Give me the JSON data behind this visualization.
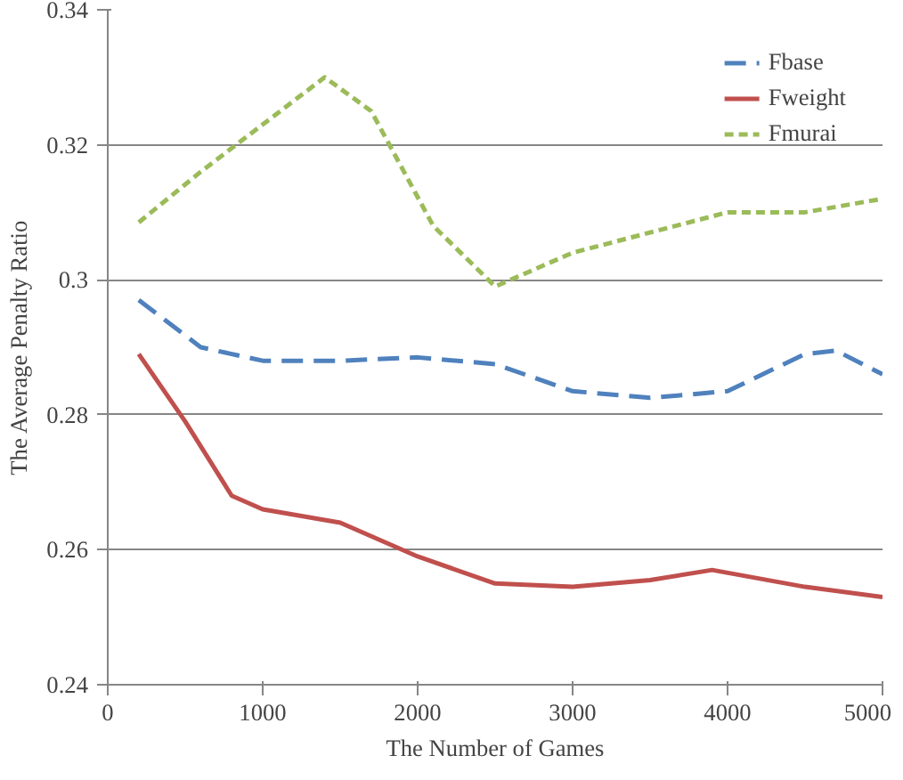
{
  "chart_data": {
    "type": "line",
    "xlabel": "The Number of Games",
    "ylabel": "The Average Penalty Ratio",
    "xlim": [
      0,
      5000
    ],
    "xticks": [
      0,
      1000,
      2000,
      3000,
      4000,
      5000
    ],
    "ylim": [
      0.24,
      0.34
    ],
    "yticks": [
      0.24,
      0.26,
      0.28,
      0.3,
      0.32,
      0.34
    ],
    "grid": "y",
    "legend": "top right",
    "series": [
      {
        "name": "Fbase",
        "color": "#4f81bd",
        "line_style": "dashed",
        "x": [
          200,
          600,
          1000,
          1500,
          2000,
          2500,
          3000,
          3500,
          4000,
          4500,
          4700,
          5000
        ],
        "values": [
          0.297,
          0.29,
          0.288,
          0.288,
          0.2885,
          0.2875,
          0.2835,
          0.2825,
          0.2835,
          0.289,
          0.2895,
          0.286
        ]
      },
      {
        "name": "Fweight",
        "color": "#c0504d",
        "line_style": "solid",
        "x": [
          200,
          500,
          800,
          1000,
          1500,
          2000,
          2500,
          3000,
          3500,
          3900,
          4500,
          5000
        ],
        "values": [
          0.289,
          0.279,
          0.268,
          0.266,
          0.264,
          0.259,
          0.255,
          0.2545,
          0.2555,
          0.257,
          0.2545,
          0.253
        ]
      },
      {
        "name": "Fmurai",
        "color": "#9bbb59",
        "line_style": "dotted",
        "x": [
          200,
          600,
          1000,
          1400,
          1700,
          2100,
          2500,
          3000,
          3500,
          4000,
          4500,
          5000
        ],
        "values": [
          0.3085,
          0.316,
          0.323,
          0.33,
          0.325,
          0.308,
          0.299,
          0.304,
          0.307,
          0.31,
          0.31,
          0.312
        ]
      }
    ]
  }
}
